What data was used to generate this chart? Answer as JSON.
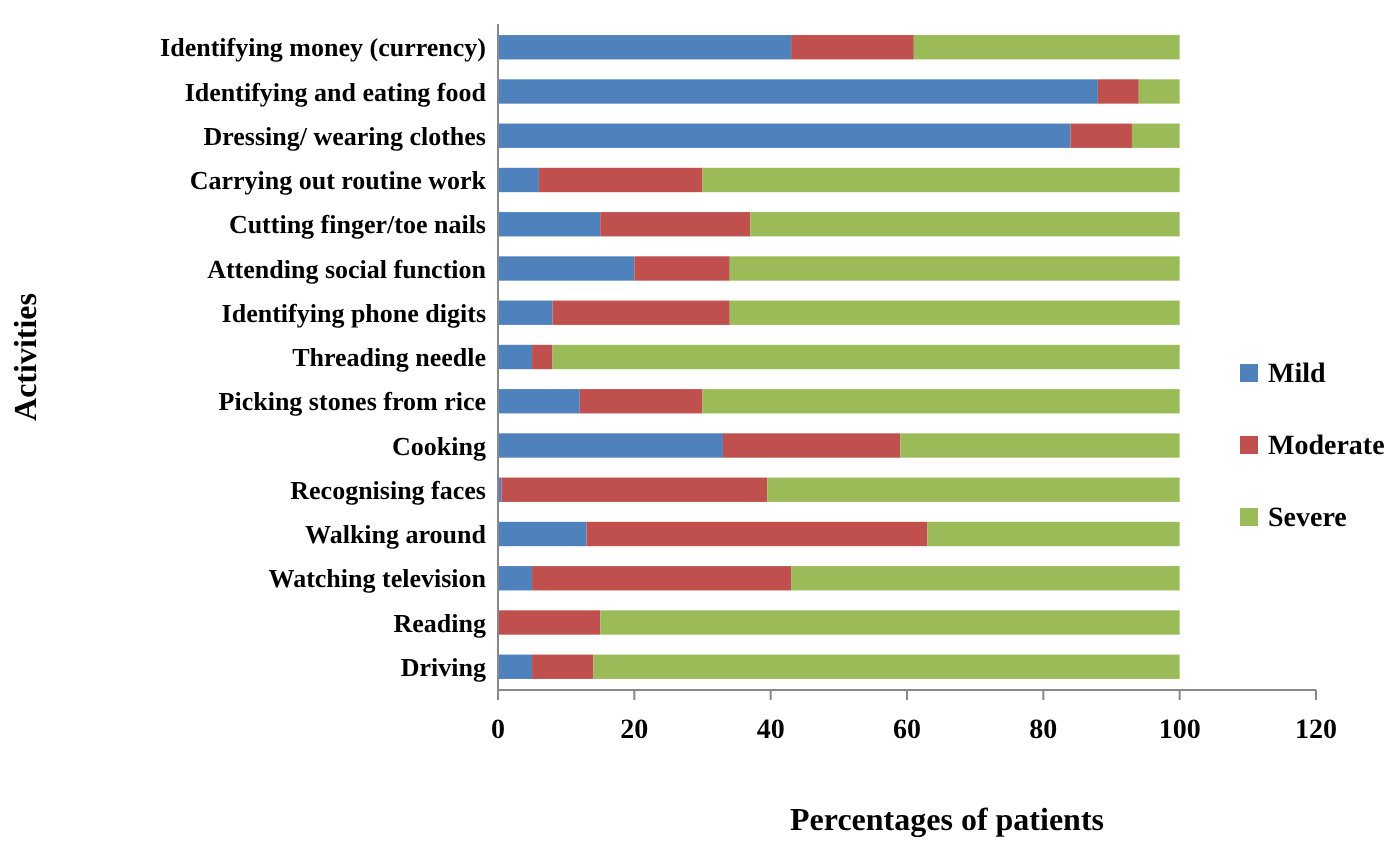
{
  "chart_data": {
    "type": "bar",
    "orientation": "horizontal",
    "stacked": true,
    "xlabel": "Percentages of patients",
    "ylabel": "Activities",
    "categories": [
      "Identifying money (currency)",
      "Identifying and eating food",
      "Dressing/ wearing clothes",
      "Carrying out routine work",
      "Cutting finger/toe nails",
      "Attending social function",
      "Identifying phone digits",
      "Threading needle",
      "Picking stones from rice",
      "Cooking",
      "Recognising faces",
      "Walking around",
      "Watching television",
      "Reading",
      "Driving"
    ],
    "series": [
      {
        "name": "Mild",
        "color": "#4f81bd",
        "values": [
          43,
          88,
          84,
          6,
          15,
          20,
          8,
          5,
          12,
          33,
          0.5,
          13,
          5,
          0,
          5
        ]
      },
      {
        "name": "Moderate",
        "color": "#c0504d",
        "values": [
          18,
          6,
          9,
          24,
          22,
          14,
          26,
          3,
          18,
          26,
          39,
          50,
          38,
          15,
          9
        ]
      },
      {
        "name": "Severe",
        "color": "#9bbb59",
        "values": [
          39,
          6,
          7,
          70,
          63,
          66,
          66,
          92,
          70,
          41,
          60.5,
          37,
          57,
          85,
          86
        ]
      }
    ],
    "xlim": [
      0,
      120
    ],
    "xticks": [
      0,
      20,
      40,
      60,
      80,
      100,
      120
    ],
    "grid": false,
    "legend": "right"
  }
}
